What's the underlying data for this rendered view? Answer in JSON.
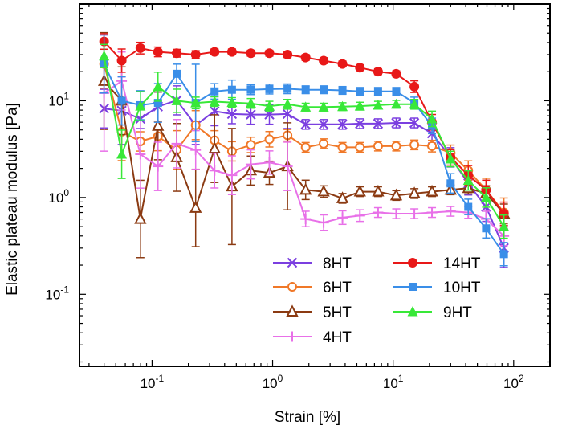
{
  "chart_data": {
    "type": "line",
    "title": "",
    "xlabel": "Strain [%]",
    "ylabel": "Elastic plateau modulus [Pa]",
    "xscale": "log",
    "yscale": "log",
    "xlim": [
      0.025,
      200
    ],
    "ylim": [
      0.018,
      100
    ],
    "xticks": [
      {
        "value": 0.1,
        "base": "10",
        "exp": "-1"
      },
      {
        "value": 1,
        "label": "10",
        "sup": "0",
        "base": "10",
        "exp": "0"
      },
      {
        "value": 10,
        "base": "10",
        "exp": "1"
      },
      {
        "value": 100,
        "base": "10",
        "exp": "2"
      }
    ],
    "yticks": [
      {
        "value": 0.1,
        "base": "10",
        "exp": "-1"
      },
      {
        "value": 1,
        "base": "10",
        "exp": "0"
      },
      {
        "value": 10,
        "base": "10",
        "exp": "1"
      }
    ],
    "legend_position": "lower-center",
    "series": [
      {
        "name": "8HT",
        "color": "#7b3fe0",
        "marker": "x",
        "x": [
          0.04,
          0.056,
          0.08,
          0.112,
          0.16,
          0.23,
          0.33,
          0.46,
          0.66,
          0.94,
          1.33,
          1.88,
          2.65,
          3.8,
          5.3,
          7.5,
          10.6,
          15,
          21,
          30,
          42,
          59,
          83
        ],
        "y": [
          8.3,
          7.9,
          6.5,
          8.7,
          10.1,
          5.6,
          7.8,
          7.3,
          7.2,
          7.2,
          7.3,
          5.7,
          5.7,
          5.7,
          5.8,
          5.8,
          5.9,
          5.9,
          4.6,
          2.6,
          1.4,
          0.8,
          0.3
        ],
        "err": [
          0.2,
          0.35,
          0.1,
          0.15,
          0.15,
          0.2,
          0.15,
          0.1,
          0.1,
          0.1,
          0.15,
          0.05,
          0.05,
          0.05,
          0.05,
          0.05,
          0.05,
          0.05,
          0.1,
          0.1,
          0.12,
          0.15,
          0.2
        ]
      },
      {
        "name": "6HT",
        "color": "#f07828",
        "marker": "o-open",
        "x": [
          0.04,
          0.056,
          0.08,
          0.112,
          0.16,
          0.23,
          0.33,
          0.46,
          0.66,
          0.94,
          1.33,
          1.88,
          2.65,
          3.8,
          5.3,
          7.5,
          10.6,
          15,
          21,
          30,
          42,
          59,
          83
        ],
        "y": [
          24,
          4.8,
          3.8,
          4.3,
          3.1,
          5.6,
          3.9,
          3.0,
          3.5,
          4.0,
          4.4,
          3.3,
          3.6,
          3.3,
          3.3,
          3.4,
          3.4,
          3.5,
          3.4,
          2.9,
          1.9,
          1.2,
          0.7
        ],
        "err": [
          0.25,
          0.3,
          0.1,
          0.15,
          0.2,
          0.15,
          0.1,
          0.1,
          0.08,
          0.08,
          0.06,
          0.05,
          0.05,
          0.05,
          0.05,
          0.05,
          0.05,
          0.05,
          0.06,
          0.08,
          0.1,
          0.12,
          0.15
        ]
      },
      {
        "name": "5HT",
        "color": "#8b3a12",
        "marker": "triangle-open",
        "x": [
          0.04,
          0.056,
          0.08,
          0.112,
          0.16,
          0.23,
          0.33,
          0.46,
          0.66,
          0.94,
          1.33,
          1.88,
          2.65,
          3.8,
          5.3,
          7.5,
          10.6,
          15,
          21,
          30,
          42,
          59,
          83
        ],
        "y": [
          16,
          10,
          0.6,
          5.5,
          2.6,
          0.78,
          3.2,
          1.3,
          1.9,
          1.8,
          2.1,
          1.2,
          1.15,
          0.98,
          1.15,
          1.15,
          1.05,
          1.1,
          1.15,
          1.2,
          1.25,
          1.1,
          0.68
        ],
        "err": [
          0.5,
          0.35,
          0.4,
          0.35,
          0.35,
          0.4,
          0.35,
          0.6,
          0.15,
          0.12,
          0.45,
          0.1,
          0.06,
          0.05,
          0.05,
          0.05,
          0.05,
          0.05,
          0.05,
          0.05,
          0.06,
          0.08,
          0.1
        ]
      },
      {
        "name": "4HT",
        "color": "#e870e8",
        "marker": "plus",
        "x": [
          0.04,
          0.056,
          0.08,
          0.112,
          0.16,
          0.23,
          0.33,
          0.46,
          0.66,
          0.94,
          1.33,
          1.88,
          2.65,
          3.8,
          5.3,
          7.5,
          10.6,
          15,
          21,
          30,
          42,
          59,
          83
        ],
        "y": [
          12,
          16,
          2.8,
          2.1,
          3.6,
          3.1,
          1.9,
          1.7,
          2.2,
          2.3,
          2.1,
          0.6,
          0.55,
          0.62,
          0.65,
          0.7,
          0.68,
          0.68,
          0.7,
          0.72,
          0.7,
          0.6,
          0.4
        ],
        "err": [
          0.6,
          0.3,
          0.35,
          0.25,
          0.25,
          0.2,
          0.18,
          0.2,
          0.15,
          0.12,
          0.25,
          0.08,
          0.08,
          0.07,
          0.06,
          0.05,
          0.05,
          0.05,
          0.05,
          0.05,
          0.06,
          0.08,
          0.1
        ]
      },
      {
        "name": "14HT",
        "color": "#e81818",
        "marker": "o-filled",
        "x": [
          0.04,
          0.056,
          0.08,
          0.112,
          0.16,
          0.23,
          0.33,
          0.46,
          0.66,
          0.94,
          1.33,
          1.88,
          2.65,
          3.8,
          5.3,
          7.5,
          10.6,
          15,
          21,
          30,
          42,
          59,
          83
        ],
        "y": [
          41,
          26,
          35,
          32,
          31,
          30,
          32,
          32,
          31,
          31,
          30,
          28,
          26,
          24,
          22,
          20,
          19,
          14,
          6,
          2.6,
          1.7,
          1.2,
          0.68
        ],
        "err": [
          0.08,
          0.12,
          0.06,
          0.05,
          0.04,
          0.04,
          0.03,
          0.03,
          0.03,
          0.03,
          0.03,
          0.03,
          0.03,
          0.03,
          0.03,
          0.03,
          0.03,
          0.06,
          0.08,
          0.08,
          0.1,
          0.1,
          0.12
        ]
      },
      {
        "name": "10HT",
        "color": "#3a8ee8",
        "marker": "square-filled",
        "x": [
          0.04,
          0.056,
          0.08,
          0.112,
          0.16,
          0.23,
          0.33,
          0.46,
          0.66,
          0.94,
          1.33,
          1.88,
          2.65,
          3.8,
          5.3,
          7.5,
          10.6,
          15,
          21,
          30,
          42,
          59,
          83
        ],
        "y": [
          24,
          10,
          9,
          9.5,
          19,
          9.5,
          12.5,
          13,
          13,
          13.2,
          13.3,
          13,
          13,
          12.8,
          12.5,
          12.5,
          12.5,
          9.5,
          5.5,
          1.4,
          0.8,
          0.48,
          0.26
        ],
        "err": [
          0.3,
          0.25,
          0.15,
          0.2,
          0.1,
          0.4,
          0.08,
          0.1,
          0.05,
          0.05,
          0.05,
          0.04,
          0.04,
          0.04,
          0.04,
          0.04,
          0.04,
          0.06,
          0.08,
          0.1,
          0.08,
          0.1,
          0.12
        ]
      },
      {
        "name": "9HT",
        "color": "#38e838",
        "marker": "triangle-filled",
        "x": [
          0.04,
          0.056,
          0.08,
          0.112,
          0.16,
          0.23,
          0.33,
          0.46,
          0.66,
          0.94,
          1.33,
          1.88,
          2.65,
          3.8,
          5.3,
          7.5,
          10.6,
          15,
          21,
          30,
          42,
          59,
          83
        ],
        "y": [
          29,
          2.8,
          8.8,
          14,
          10,
          9.5,
          9.8,
          9.6,
          9.4,
          8.8,
          9.2,
          8.6,
          8.6,
          8.7,
          8.8,
          9.0,
          9.2,
          9.2,
          6.5,
          2.5,
          1.5,
          1.0,
          0.5
        ],
        "err": [
          0.12,
          0.25,
          0.15,
          0.15,
          0.12,
          0.06,
          0.05,
          0.05,
          0.05,
          0.05,
          0.05,
          0.04,
          0.04,
          0.04,
          0.04,
          0.04,
          0.04,
          0.05,
          0.08,
          0.08,
          0.1,
          0.1,
          0.12
        ]
      }
    ]
  }
}
